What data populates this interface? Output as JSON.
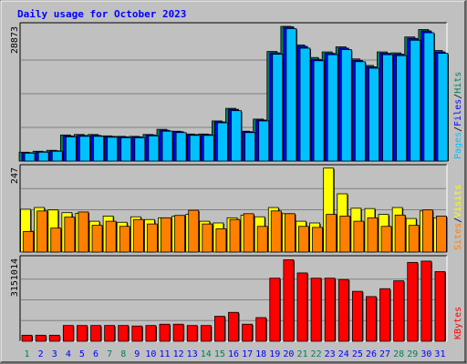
{
  "chart_data": {
    "title": "Daily usage for October 2023",
    "type": "bar",
    "days": [
      "1",
      "2",
      "3",
      "4",
      "5",
      "6",
      "7",
      "8",
      "9",
      "10",
      "11",
      "12",
      "13",
      "14",
      "15",
      "16",
      "17",
      "18",
      "19",
      "20",
      "21",
      "22",
      "23",
      "24",
      "25",
      "26",
      "27",
      "28",
      "29",
      "30",
      "31"
    ],
    "weekend_days": [
      "1",
      "7",
      "8",
      "14",
      "15",
      "21",
      "22",
      "28",
      "29"
    ],
    "panels": [
      {
        "id": "hits-files-pages",
        "max_label": "28873",
        "ymax": 28873,
        "series": [
          {
            "name": "Hits",
            "color": "#00805c",
            "values": [
              1900,
              2100,
              2300,
              5600,
              5700,
              5700,
              5400,
              5300,
              5300,
              5700,
              6800,
              6400,
              5800,
              5800,
              8600,
              11300,
              6400,
              9000,
              23500,
              29100,
              24900,
              22200,
              23400,
              24500,
              21900,
              20500,
              23400,
              23200,
              26600,
              28200,
              23700
            ]
          },
          {
            "name": "Files",
            "color": "#0000ff",
            "values": [
              1800,
              2000,
              2200,
              5400,
              5500,
              5500,
              5300,
              5200,
              5200,
              5600,
              6600,
              6300,
              5700,
              5700,
              8400,
              11100,
              6300,
              8800,
              23200,
              28800,
              24600,
              21800,
              23100,
              24200,
              21600,
              20200,
              23100,
              22900,
              26300,
              27900,
              23400
            ]
          },
          {
            "name": "Pages",
            "color": "#00c0ff",
            "values": [
              1700,
              1900,
              2100,
              5200,
              5300,
              5300,
              5100,
              5000,
              5000,
              5400,
              6400,
              6100,
              5500,
              5500,
              8200,
              10800,
              6100,
              8600,
              22900,
              28400,
              24200,
              21500,
              22800,
              23900,
              21300,
              19900,
              22800,
              22600,
              25900,
              27500,
              23100
            ]
          }
        ]
      },
      {
        "id": "visits-sites",
        "max_label": "247",
        "ymax": 247,
        "series": [
          {
            "name": "Visits",
            "color": "#ffff00",
            "values": [
              125,
              130,
              123,
              115,
              113,
              90,
              105,
              87,
              103,
              95,
              100,
              105,
              110,
              90,
              85,
              100,
              108,
              103,
              130,
              112,
              90,
              85,
              245,
              170,
              128,
              127,
              110,
              130,
              98,
              120,
              100
            ]
          },
          {
            "name": "Sites",
            "color": "#ff8000",
            "values": [
              60,
              120,
              70,
              102,
              117,
              78,
              90,
              75,
              95,
              82,
              100,
              107,
              122,
              82,
              68,
              95,
              112,
              75,
              120,
              112,
              75,
              72,
              110,
              105,
              90,
              100,
              75,
              108,
              78,
              123,
              105
            ]
          }
        ]
      },
      {
        "id": "kbytes",
        "max_label": "3151014",
        "ymax": 3151014,
        "series": [
          {
            "name": "KBytes",
            "color": "#ff0000",
            "values": [
              230000,
              230000,
              230000,
              600000,
              600000,
              600000,
              600000,
              600000,
              580000,
              600000,
              650000,
              650000,
              600000,
              600000,
              950000,
              1100000,
              650000,
              900000,
              2400000,
              3100000,
              2600000,
              2400000,
              2400000,
              2350000,
              1900000,
              1700000,
              2000000,
              2300000,
              3000000,
              3050000,
              2650000
            ]
          }
        ]
      }
    ],
    "right_labels": [
      {
        "panel": "hits-files-pages",
        "parts": [
          {
            "text": "Pages",
            "color": "#00c0ff"
          },
          {
            "text": "/",
            "color": "#000000"
          },
          {
            "text": "Files",
            "color": "#0000ff"
          },
          {
            "text": "/",
            "color": "#000000"
          },
          {
            "text": "Hits",
            "color": "#00805c"
          }
        ]
      },
      {
        "panel": "visits-sites",
        "parts": [
          {
            "text": "Sites",
            "color": "#ff8000"
          },
          {
            "text": "/",
            "color": "#000000"
          },
          {
            "text": "Visits",
            "color": "#ffff00"
          }
        ]
      },
      {
        "panel": "kbytes",
        "parts": [
          {
            "text": "KBytes",
            "color": "#ff0000"
          }
        ]
      }
    ],
    "colors": {
      "background": "#c0c0c0",
      "title": "#0000ff",
      "weekday_label": "#0000ff",
      "weekend_label": "#00805c",
      "gridline": "#808080"
    }
  }
}
